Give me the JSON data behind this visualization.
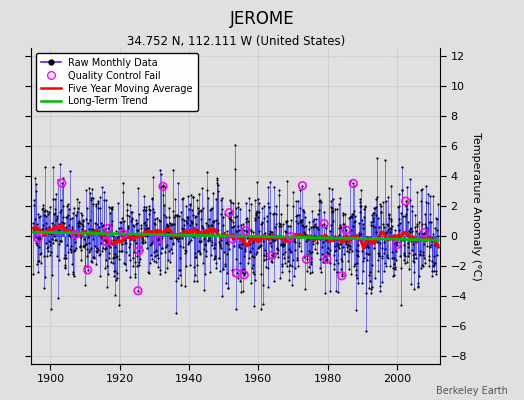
{
  "title": "JEROME",
  "subtitle": "34.752 N, 112.111 W (United States)",
  "ylabel_right": "Temperature Anomaly (°C)",
  "credit": "Berkeley Earth",
  "ylim": [
    -8.5,
    12.5
  ],
  "yticks": [
    -8,
    -6,
    -4,
    -2,
    0,
    2,
    4,
    6,
    8,
    10,
    12
  ],
  "xlim": [
    1894.5,
    2012.5
  ],
  "xticks": [
    1900,
    1920,
    1940,
    1960,
    1980,
    2000
  ],
  "raw_color": "#3333FF",
  "moving_avg_color": "#FF0000",
  "trend_color": "#00BB00",
  "qc_color": "#FF00FF",
  "background_color": "#E0E0E0",
  "title_fontsize": 12,
  "subtitle_fontsize": 8.5,
  "tick_fontsize": 8,
  "ylabel_fontsize": 8
}
